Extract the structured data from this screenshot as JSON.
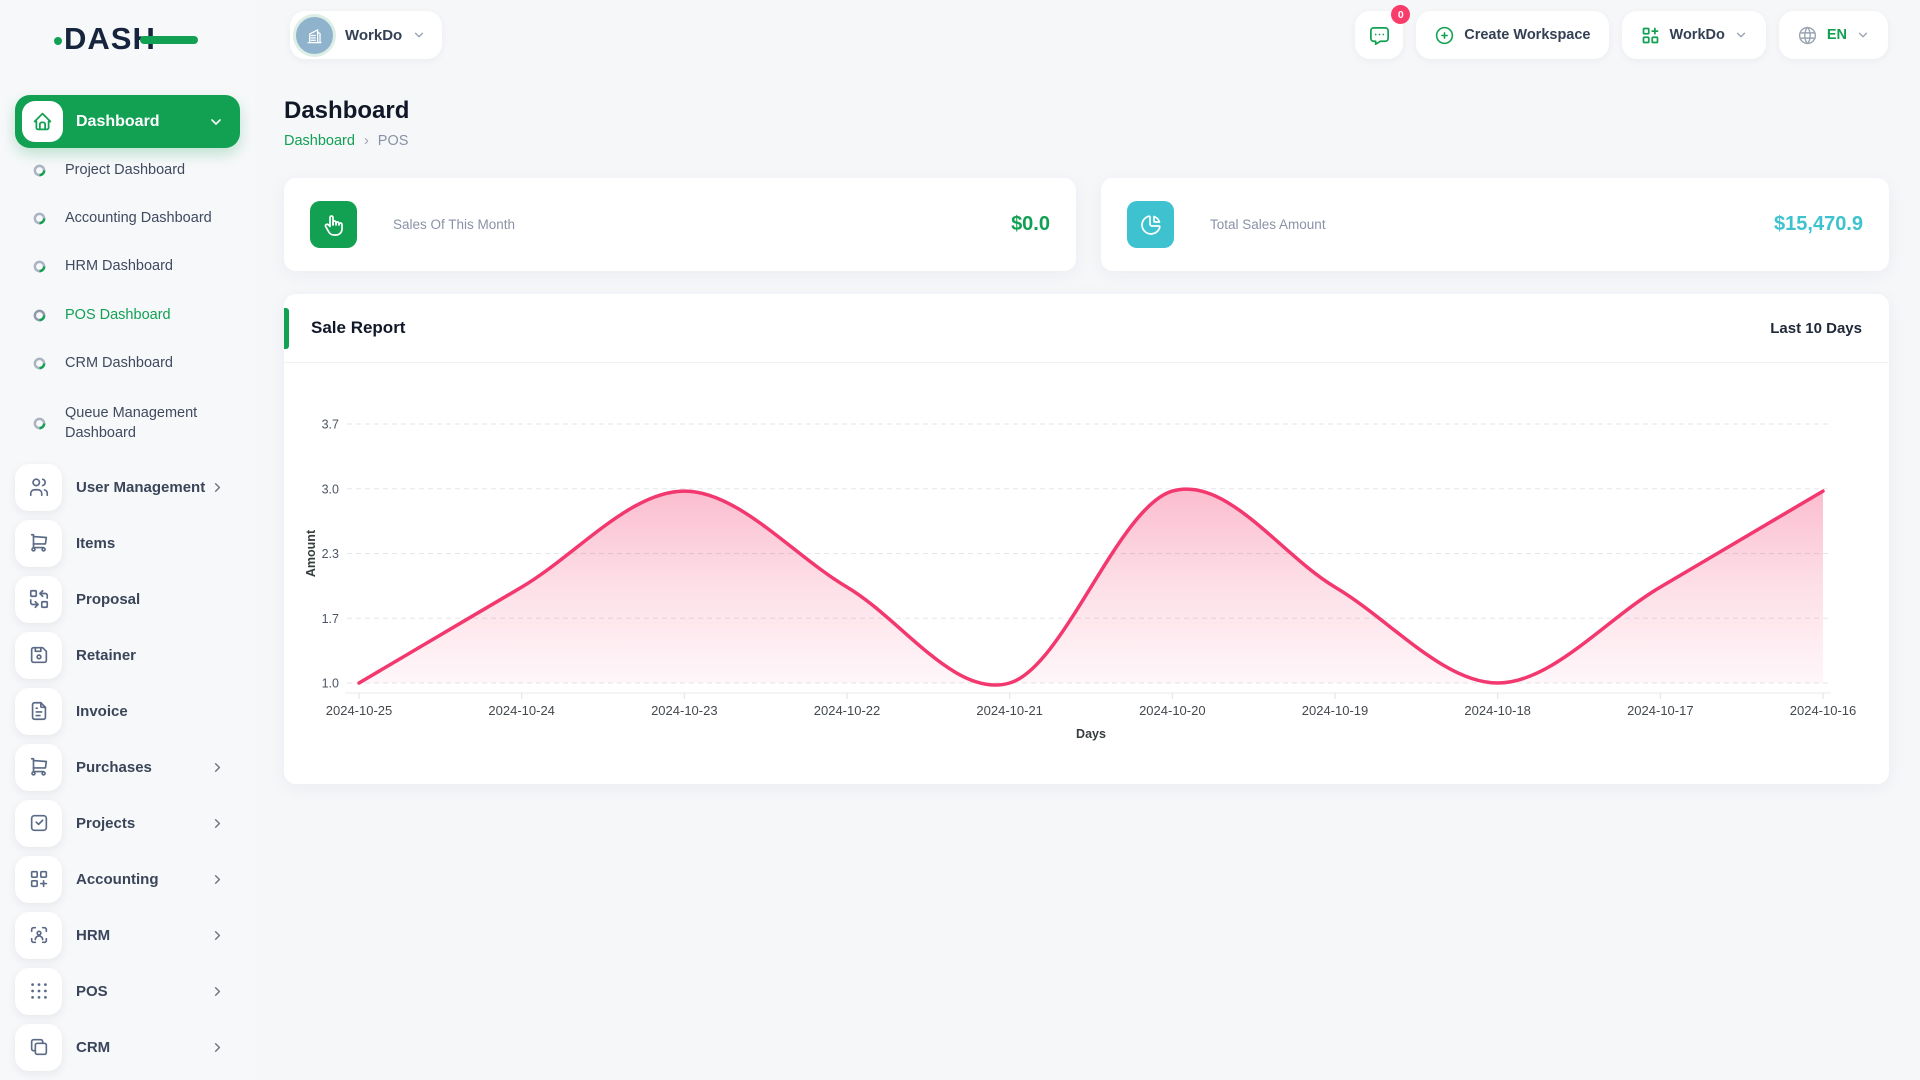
{
  "brand": {
    "name": "DASH"
  },
  "header": {
    "workspace_chip": {
      "label": "WorkDo"
    },
    "messages_badge": "0",
    "create_workspace_label": "Create Workspace",
    "workspace_menu_label": "WorkDo",
    "language": "EN"
  },
  "page": {
    "title": "Dashboard",
    "breadcrumb": {
      "root": "Dashboard",
      "sep": "›",
      "current": "POS"
    }
  },
  "stats": {
    "sales_month": {
      "label": "Sales Of This Month",
      "value": "$0.0",
      "color": "#12A053"
    },
    "total_sales": {
      "label": "Total Sales Amount",
      "value": "$15,470.9",
      "color": "#3EC2CF"
    }
  },
  "report": {
    "title": "Sale Report",
    "period": "Last 10 Days"
  },
  "chart_data": {
    "type": "area",
    "title": "Sale Report",
    "categories": [
      "2024-10-25",
      "2024-10-24",
      "2024-10-23",
      "2024-10-22",
      "2024-10-21",
      "2024-10-20",
      "2024-10-19",
      "2024-10-18",
      "2024-10-17",
      "2024-10-16"
    ],
    "series": [
      {
        "name": "Amount",
        "values": [
          1,
          2,
          3,
          2,
          1,
          3,
          2,
          1,
          2,
          3
        ]
      }
    ],
    "xlabel": "Days",
    "ylabel": "Amount",
    "ylim": [
      1.0,
      3.7
    ],
    "ytick_labels": [
      "1.0",
      "1.7",
      "2.3",
      "3.0",
      "3.7"
    ],
    "grid": "horizontal-dashed",
    "legend": "none",
    "line_color": "#F2386E",
    "fill_style": "vertical gradient pink to white"
  },
  "sidebar": {
    "active_item": {
      "label": "Dashboard"
    },
    "dashboard_children": [
      {
        "label": "Project Dashboard"
      },
      {
        "label": "Accounting Dashboard"
      },
      {
        "label": "HRM Dashboard"
      },
      {
        "label": "POS Dashboard"
      },
      {
        "label": "CRM Dashboard"
      },
      {
        "label": "Queue Management Dashboard"
      }
    ],
    "modules": [
      {
        "label": "User Management"
      },
      {
        "label": "Items"
      },
      {
        "label": "Proposal"
      },
      {
        "label": "Retainer"
      },
      {
        "label": "Invoice"
      },
      {
        "label": "Purchases"
      },
      {
        "label": "Projects"
      },
      {
        "label": "Accounting"
      },
      {
        "label": "HRM"
      },
      {
        "label": "POS"
      },
      {
        "label": "CRM"
      }
    ]
  },
  "colors": {
    "primary": "#12A053",
    "chart_pink": "#F2386E",
    "teal": "#3EC2CF",
    "badge_pink": "#FA3C6B"
  }
}
